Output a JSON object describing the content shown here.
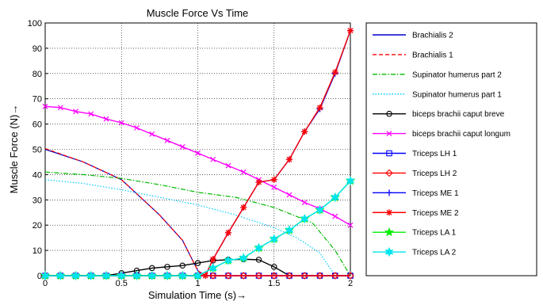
{
  "chart_data": {
    "type": "line",
    "title": "Muscle Force Vs Time",
    "xlabel": "Simulation Time (s)→",
    "ylabel": "Muscle Force (N)→",
    "xlim": [
      0,
      2
    ],
    "ylim": [
      0,
      100
    ],
    "xticks": [
      "0",
      "0.5",
      "1",
      "1.5",
      "2"
    ],
    "yticks": [
      "0",
      "10",
      "20",
      "30",
      "40",
      "50",
      "60",
      "70",
      "80",
      "90",
      "100"
    ],
    "grid": true,
    "legend_placement": "outside-right",
    "series": [
      {
        "name": "Brachialis 2",
        "color": "#0000cc",
        "dash": "solid",
        "marker": "none",
        "x": [
          0,
          0.25,
          0.5,
          0.75,
          0.9,
          1.0,
          1.05,
          1.2,
          1.5,
          2.0
        ],
        "y": [
          50,
          45,
          38,
          24,
          14,
          2,
          0,
          0,
          0,
          0
        ]
      },
      {
        "name": "Brachialis 1",
        "color": "#ff0000",
        "dash": "dashed",
        "marker": "none",
        "x": [
          0,
          0.25,
          0.5,
          0.75,
          0.9,
          1.0,
          1.05,
          1.2,
          1.5,
          2.0
        ],
        "y": [
          50.3,
          45,
          38,
          24,
          14,
          2,
          0,
          0,
          0,
          0
        ]
      },
      {
        "name": "Supinator humerus part 2",
        "color": "#00bb00",
        "dash": "dashdot",
        "marker": "none",
        "x": [
          0,
          0.25,
          0.5,
          0.75,
          1.0,
          1.25,
          1.5,
          1.75,
          1.9,
          2.0
        ],
        "y": [
          41,
          40,
          38.5,
          36,
          33,
          31,
          27,
          21,
          10,
          0
        ]
      },
      {
        "name": "Supinator humerus part 1",
        "color": "#00ccff",
        "dash": "dotted",
        "marker": "none",
        "x": [
          0,
          0.25,
          0.5,
          0.75,
          1.0,
          1.25,
          1.5,
          1.65,
          1.8,
          1.9,
          2.0
        ],
        "y": [
          38,
          36.5,
          34,
          31,
          28,
          24,
          19,
          15,
          9,
          0,
          0
        ]
      },
      {
        "name": "biceps brachii caput breve",
        "color": "#000000",
        "dash": "solid",
        "marker": "circle",
        "x": [
          0,
          0.1,
          0.2,
          0.3,
          0.4,
          0.5,
          0.6,
          0.7,
          0.8,
          0.9,
          1.0,
          1.1,
          1.2,
          1.3,
          1.4,
          1.5,
          1.6,
          1.7,
          1.8,
          1.9,
          2.0
        ],
        "y": [
          0,
          0,
          0,
          0,
          0,
          1,
          2,
          3,
          3.5,
          4,
          5,
          6,
          6.3,
          6.5,
          6.3,
          3.5,
          0,
          0,
          0,
          0,
          0
        ]
      },
      {
        "name": "biceps brachii caput longum",
        "color": "#ff00ff",
        "dash": "solid",
        "marker": "x",
        "x": [
          0,
          0.1,
          0.2,
          0.3,
          0.4,
          0.5,
          0.6,
          0.7,
          0.8,
          0.9,
          1.0,
          1.1,
          1.2,
          1.3,
          1.4,
          1.5,
          1.6,
          1.7,
          1.8,
          1.9,
          2.0
        ],
        "y": [
          67,
          66.5,
          65,
          64,
          62,
          60.5,
          58.5,
          56,
          53.5,
          51,
          48.5,
          46,
          43.5,
          41,
          38,
          35,
          32,
          29,
          26.5,
          23.5,
          20
        ]
      },
      {
        "name": "Triceps LH 1",
        "color": "#0000ff",
        "dash": "solid",
        "marker": "square",
        "x": [
          0,
          0.1,
          0.2,
          0.3,
          0.4,
          0.5,
          0.6,
          0.7,
          0.8,
          0.9,
          1.0,
          1.1,
          1.2,
          1.3,
          1.4,
          1.5,
          1.6,
          1.7,
          1.8,
          1.9,
          2.0
        ],
        "y": [
          0,
          0,
          0,
          0,
          0,
          0,
          0,
          0,
          0,
          0,
          0,
          0,
          0,
          0,
          0,
          0,
          0,
          0,
          0,
          0,
          0
        ]
      },
      {
        "name": "Triceps LH 2",
        "color": "#ff0000",
        "dash": "solid",
        "marker": "diamond",
        "x": [
          0,
          0.1,
          0.2,
          0.3,
          0.4,
          0.5,
          0.6,
          0.7,
          0.8,
          0.9,
          1.0,
          1.1,
          1.2,
          1.3,
          1.4,
          1.5,
          1.6,
          1.7,
          1.8,
          1.9,
          2.0
        ],
        "y": [
          0,
          0,
          0,
          0,
          0,
          0,
          0,
          0,
          0,
          0,
          0,
          0,
          0,
          0,
          0,
          0,
          0,
          0,
          0,
          0,
          0
        ]
      },
      {
        "name": "Triceps ME 1",
        "color": "#0000ff",
        "dash": "solid",
        "marker": "plus",
        "x": [
          0,
          0.1,
          0.2,
          0.3,
          0.4,
          0.5,
          0.6,
          0.7,
          0.8,
          0.9,
          1.0,
          1.05,
          1.1,
          1.2,
          1.3,
          1.4,
          1.5,
          1.6,
          1.7,
          1.8,
          1.9,
          2.0
        ],
        "y": [
          0,
          0,
          0,
          0,
          0,
          0,
          0,
          0,
          0,
          0,
          0,
          0,
          6.5,
          17,
          27,
          37,
          38,
          46,
          57,
          66,
          80,
          97
        ]
      },
      {
        "name": "Triceps ME 2",
        "color": "#ff0000",
        "dash": "solid",
        "marker": "star",
        "x": [
          0,
          0.1,
          0.2,
          0.3,
          0.4,
          0.5,
          0.6,
          0.7,
          0.8,
          0.9,
          1.0,
          1.05,
          1.1,
          1.2,
          1.3,
          1.4,
          1.5,
          1.6,
          1.7,
          1.8,
          1.9,
          2.0
        ],
        "y": [
          0,
          0,
          0,
          0,
          0,
          0,
          0,
          0,
          0,
          0,
          0,
          0,
          6.5,
          17,
          27,
          37,
          38,
          46,
          57,
          66.5,
          80.5,
          97
        ]
      },
      {
        "name": "Triceps LA 1",
        "color": "#00ee00",
        "dash": "solid",
        "marker": "pentagram",
        "x": [
          0,
          0.1,
          0.2,
          0.3,
          0.4,
          0.5,
          0.6,
          0.7,
          0.8,
          0.9,
          1.0,
          1.1,
          1.2,
          1.3,
          1.4,
          1.5,
          1.6,
          1.7,
          1.8,
          1.9,
          2.0
        ],
        "y": [
          0,
          0,
          0,
          0,
          0,
          0,
          0,
          0,
          0,
          0,
          0,
          3,
          6,
          7,
          11,
          14.5,
          18,
          22.5,
          26,
          31,
          37.5
        ]
      },
      {
        "name": "Triceps LA 2",
        "color": "#00e5ee",
        "dash": "solid",
        "marker": "hexagram",
        "x": [
          0,
          0.1,
          0.2,
          0.3,
          0.4,
          0.5,
          0.6,
          0.7,
          0.8,
          0.9,
          1.0,
          1.1,
          1.2,
          1.3,
          1.4,
          1.5,
          1.6,
          1.7,
          1.8,
          1.9,
          2.0
        ],
        "y": [
          0,
          0,
          0,
          0,
          0,
          0,
          0,
          0,
          0,
          0,
          0,
          3,
          6,
          7,
          11,
          14.5,
          18,
          22.5,
          26,
          31,
          37.5
        ]
      }
    ]
  }
}
